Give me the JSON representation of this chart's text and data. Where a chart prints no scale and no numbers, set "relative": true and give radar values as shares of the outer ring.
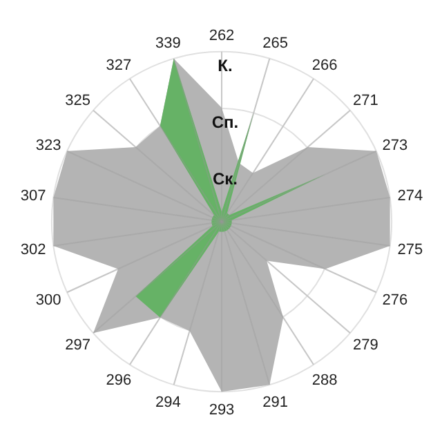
{
  "chart_data": {
    "type": "radar",
    "relative": true,
    "grid": true,
    "categories": [
      "262",
      "265",
      "266",
      "271",
      "273",
      "274",
      "275",
      "276",
      "279",
      "288",
      "291",
      "293",
      "294",
      "296",
      "297",
      "300",
      "302",
      "307",
      "323",
      "325",
      "327",
      "339"
    ],
    "annotations": [
      "Ск.",
      "Сп.",
      "К."
    ],
    "series": [
      {
        "color": "#b4b4b4",
        "values": [
          0.67,
          0.36,
          0.34,
          0.67,
          1.0,
          1.0,
          1.0,
          0.67,
          0.35,
          0.67,
          1.0,
          1.0,
          0.67,
          0.67,
          1.0,
          0.67,
          1.0,
          1.0,
          1.0,
          0.67,
          0.67,
          1.0
        ]
      },
      {
        "color": "#66b266",
        "values": [
          0.06,
          0.67,
          0.06,
          0.06,
          0.67,
          0.06,
          0.06,
          0.06,
          0.06,
          0.06,
          0.06,
          0.06,
          0.06,
          0.67,
          0.67,
          0.06,
          0.06,
          0.06,
          0.06,
          0.06,
          0.67,
          1.0
        ]
      }
    ]
  }
}
